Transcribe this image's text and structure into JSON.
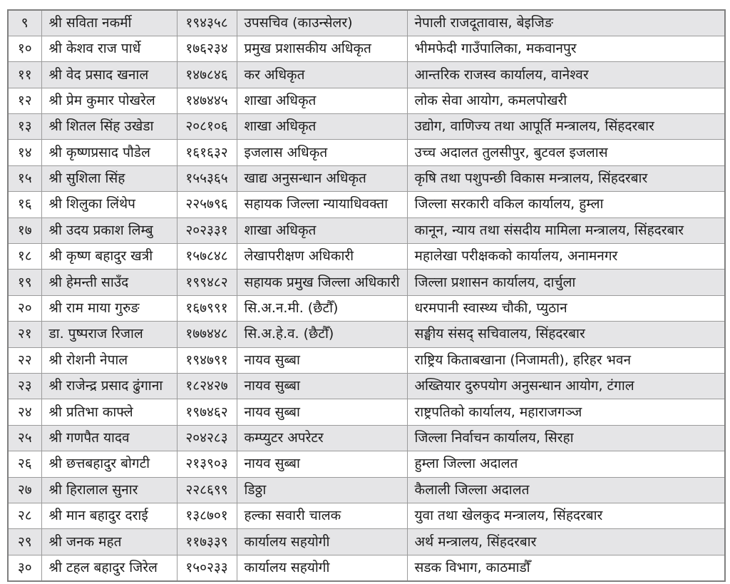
{
  "document": {
    "type": "staff-list-table",
    "language": "Nepali",
    "background_color": "#ffffff"
  },
  "table": {
    "stripe_color": "#e5e5e7",
    "border_color": "#9b9b9b",
    "outer_border_color": "#7f7f7f",
    "text_color": "#1c1c1c",
    "columns": [
      "sn",
      "name",
      "number",
      "designation",
      "office"
    ],
    "rows": [
      {
        "sn": "९",
        "name": "श्री सविता नकर्मी",
        "number": "१९४३५८",
        "designation": "उपसचिव (काउन्सेलर)",
        "office": "नेपाली राजदूतावास, बेइजिङ"
      },
      {
        "sn": "१०",
        "name": "श्री केशव राज पार्धे",
        "number": "१७६२३४",
        "designation": "प्रमुख प्रशासकीय अधिकृत",
        "office": "भीमफेदी गाउँपालिका, मकवानपुर"
      },
      {
        "sn": "११",
        "name": "श्री वेद प्रसाद खनाल",
        "number": "१४७८४६",
        "designation": "कर अधिकृत",
        "office": "आन्तरिक राजस्व कार्यालय, वानेश्वर"
      },
      {
        "sn": "१२",
        "name": "श्री प्रेम कुमार पोखरेल",
        "number": "१४७४४५",
        "designation": "शाखा अधिकृत",
        "office": "लोक सेवा आयोग, कमलपोखरी"
      },
      {
        "sn": "१३",
        "name": "श्री शितल सिंह उखेडा",
        "number": "२०८१०६",
        "designation": "शाखा अधिकृत",
        "office": "उद्योग, वाणिज्य तथा आपूर्ति मन्त्रालय, सिंहदरबार"
      },
      {
        "sn": "१४",
        "name": "श्री कृष्णप्रसाद पौडेल",
        "number": "१६१६३२",
        "designation": "इजलास अधिकृत",
        "office": "उच्च अदालत तुलसीपुर, बुटवल इजलास"
      },
      {
        "sn": "१५",
        "name": "श्री सुशिला सिंह",
        "number": "१५५३६५",
        "designation": "खाद्य अनुसन्धान अधिकृत",
        "office": "कृषि तथा पशुपन्छी विकास मन्त्रालय, सिंहदरबार"
      },
      {
        "sn": "१६",
        "name": "श्री शिलुका लिंथेप",
        "number": "२२५७९६",
        "designation": "सहायक जिल्ला न्यायाधिवक्ता",
        "office": "जिल्ला सरकारी वकिल कार्यालय, हुम्ला"
      },
      {
        "sn": "१७",
        "name": "श्री उदय प्रकाश लिम्बु",
        "number": "२०२३३१",
        "designation": "शाखा अधिकृत",
        "office": "कानून, न्याय तथा संसदीय मामिला मन्त्रालय, सिंहदरबार"
      },
      {
        "sn": "१८",
        "name": "श्री कृष्ण बहादुर खत्री",
        "number": "१५७८४८",
        "designation": "लेखापरीक्षण अधिकारी",
        "office": "महालेखा परीक्षकको कार्यालय, अनामनगर"
      },
      {
        "sn": "१९",
        "name": "श्री हेमन्ती साउँद",
        "number": "१९९४८२",
        "designation": "सहायक प्रमुख जिल्ला अधिकारी",
        "office": "जिल्ला प्रशासन कार्यालय, दार्चुला"
      },
      {
        "sn": "२०",
        "name": "श्री राम माया गुरुङ",
        "number": "१६७९९१",
        "designation": "सि.अ.न.मी. (छैटौँ)",
        "office": "धरमपानी स्वास्थ्य चौकी, प्युठान"
      },
      {
        "sn": "२१",
        "name": "डा. पुष्पराज रिजाल",
        "number": "१७७४४८",
        "designation": "सि.अ.हे.व. (छैटौँ)",
        "office": "सङ्घीय संसद् सचिवालय, सिंहदरबार"
      },
      {
        "sn": "२२",
        "name": "श्री रोशनी नेपाल",
        "number": "१९४७९१",
        "designation": "नायव सुब्बा",
        "office": "राष्ट्रिय किताबखाना (निजामती), हरिहर भवन"
      },
      {
        "sn": "२३",
        "name": "श्री राजेन्द्र प्रसाद ढुंगाना",
        "number": "१८२४२७",
        "designation": "नायव सुब्बा",
        "office": "अख्तियार दुरुपयोग अनुसन्धान आयोग, टंगाल"
      },
      {
        "sn": "२४",
        "name": "श्री प्रतिभा काफ्ले",
        "number": "१९७४६२",
        "designation": "नायव सुब्बा",
        "office": "राष्ट्रपतिको कार्यालय, महाराजगञ्ज"
      },
      {
        "sn": "२५",
        "name": "श्री गणपैत यादव",
        "number": "२०४२८३",
        "designation": "कम्प्युटर अपरेटर",
        "office": "जिल्ला निर्वाचन कार्यालय, सिरहा"
      },
      {
        "sn": "२६",
        "name": "श्री छत्तबहादुर बोगटी",
        "number": "२१३९०३",
        "designation": "नायव सुब्बा",
        "office": "हुम्ला जिल्ला अदालत"
      },
      {
        "sn": "२७",
        "name": "श्री हिरालाल सुनार",
        "number": "२२८६९९",
        "designation": "डिठ्ठा",
        "office": "कैलाली जिल्ला अदालत"
      },
      {
        "sn": "२८",
        "name": "श्री मान बहादुर दराई",
        "number": "१३८७०१",
        "designation": "हल्का सवारी चालक",
        "office": "युवा तथा खेलकुद मन्त्रालय, सिंहदरबार"
      },
      {
        "sn": "२९",
        "name": "श्री जनक महत",
        "number": "११७३३९",
        "designation": "कार्यालय सहयोगी",
        "office": "अर्थ मन्त्रालय, सिंहदरबार"
      },
      {
        "sn": "३०",
        "name": "श्री टहल बहादुर जिरेल",
        "number": "१५०२३३",
        "designation": "कार्यालय सहयोगी",
        "office": "सडक विभाग, काठमाडौँ"
      }
    ]
  }
}
